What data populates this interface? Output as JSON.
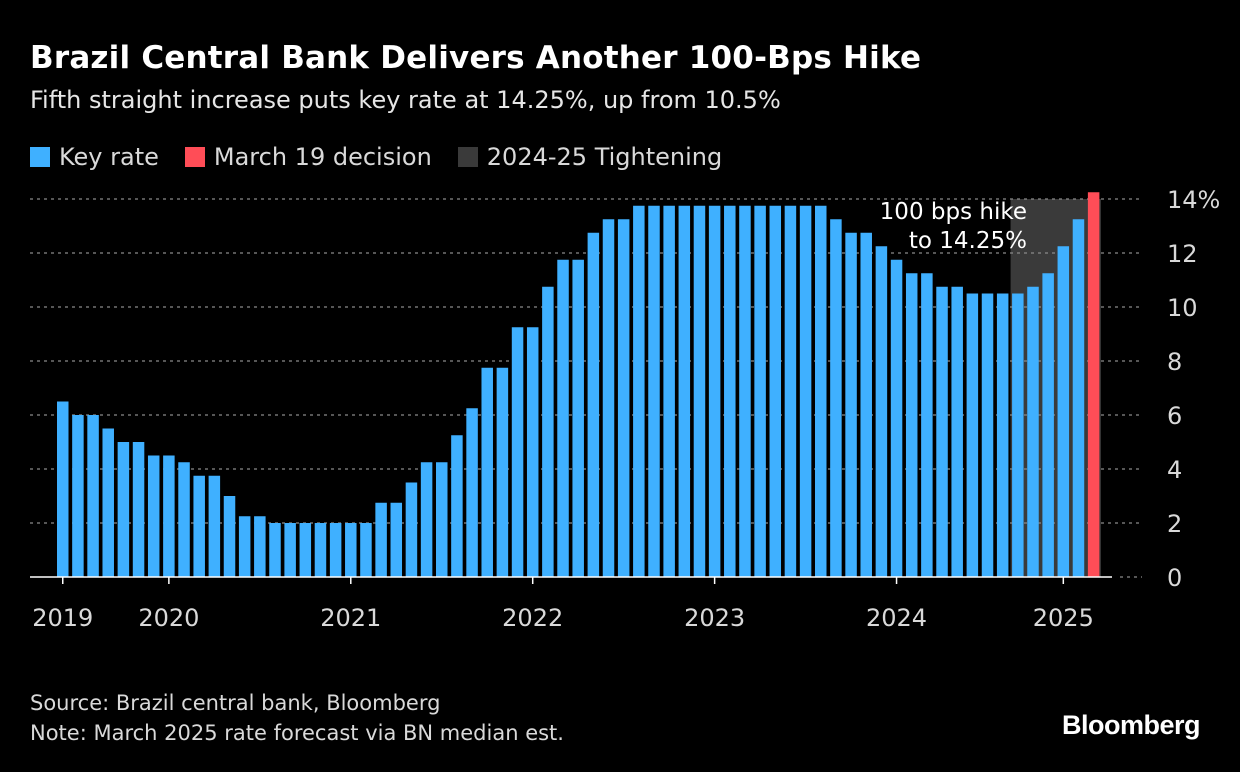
{
  "header": {
    "title": "Brazil Central Bank Delivers Another 100-Bps Hike",
    "subtitle": "Fifth straight increase puts key rate at 14.25%, up from 10.5%"
  },
  "legend": [
    {
      "label": "Key rate",
      "color": "#3fb0ff"
    },
    {
      "label": "March 19 decision",
      "color": "#ff4d57"
    },
    {
      "label": "2024-25 Tightening",
      "color": "#3a3a3a"
    }
  ],
  "chart_data": {
    "type": "bar",
    "title": "Brazil Central Bank Delivers Another 100-Bps Hike",
    "series": [
      {
        "name": "Key rate",
        "color": "#3fb0ff",
        "values": [
          6.5,
          6.0,
          6.0,
          5.5,
          5.0,
          5.0,
          4.5,
          4.5,
          4.25,
          3.75,
          3.75,
          3.0,
          2.25,
          2.25,
          2.0,
          2.0,
          2.0,
          2.0,
          2.0,
          2.0,
          2.0,
          2.75,
          2.75,
          3.5,
          4.25,
          4.25,
          5.25,
          6.25,
          7.75,
          7.75,
          9.25,
          9.25,
          10.75,
          11.75,
          11.75,
          12.75,
          13.25,
          13.25,
          13.75,
          13.75,
          13.75,
          13.75,
          13.75,
          13.75,
          13.75,
          13.75,
          13.75,
          13.75,
          13.75,
          13.75,
          13.75,
          13.25,
          12.75,
          12.75,
          12.25,
          11.75,
          11.25,
          11.25,
          10.75,
          10.75,
          10.5,
          10.5,
          10.5,
          10.5,
          10.75,
          11.25,
          12.25,
          13.25
        ]
      },
      {
        "name": "March 19 decision",
        "color": "#ff4d57",
        "values": [
          14.25
        ]
      }
    ],
    "tightening_range_bar_index": [
      63,
      68
    ],
    "ylim": [
      0,
      14
    ],
    "yticks": [
      0,
      2,
      4,
      6,
      8,
      10,
      12,
      14
    ],
    "ytick_labels": [
      "0",
      "2",
      "4",
      "6",
      "8",
      "10",
      "12",
      "14%"
    ],
    "xtick_labels": [
      {
        "label": "2019",
        "bar_index": 0
      },
      {
        "label": "2020",
        "bar_index": 7
      },
      {
        "label": "2021",
        "bar_index": 19
      },
      {
        "label": "2022",
        "bar_index": 31
      },
      {
        "label": "2023",
        "bar_index": 43
      },
      {
        "label": "2024",
        "bar_index": 55
      },
      {
        "label": "2025",
        "bar_index": 66
      }
    ],
    "annotation": {
      "line1": "100 bps hike",
      "line2": "to 14.25%"
    },
    "grid": true,
    "xlabel": "",
    "ylabel": ""
  },
  "footer": {
    "source": "Source: Brazil central bank, Bloomberg",
    "note": "Note: March 2025 rate forecast via BN median est."
  },
  "brand": "Bloomberg"
}
